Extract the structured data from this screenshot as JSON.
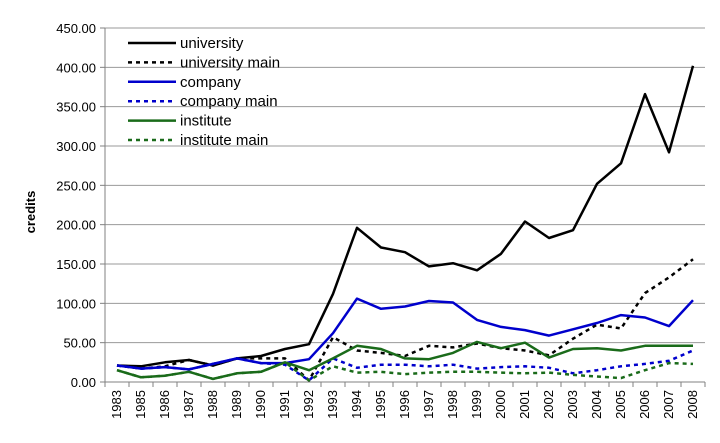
{
  "chart_data": {
    "type": "line",
    "title": "",
    "xlabel": "",
    "ylabel": "credits",
    "ylim": [
      0,
      450
    ],
    "y_ticks": [
      "0.00",
      "50.00",
      "100.00",
      "150.00",
      "200.00",
      "250.00",
      "300.00",
      "350.00",
      "400.00",
      "450.00"
    ],
    "grid": "horizontal",
    "legend_position": "top-left",
    "categories": [
      "1983",
      "1985",
      "1986",
      "1987",
      "1988",
      "1989",
      "1990",
      "1991",
      "1992",
      "1993",
      "1994",
      "1995",
      "1996",
      "1997",
      "1998",
      "1999",
      "2000",
      "2001",
      "2002",
      "2003",
      "2004",
      "2005",
      "2006",
      "2007",
      "2008"
    ],
    "series": [
      {
        "name": "university",
        "color": "#000000",
        "dash": "solid",
        "values": [
          21,
          20,
          25,
          28,
          21,
          30,
          33,
          42,
          48,
          112,
          196,
          171,
          165,
          147,
          151,
          142,
          163,
          204,
          183,
          193,
          252,
          278,
          366,
          292,
          402
        ]
      },
      {
        "name": "university main",
        "color": "#000000",
        "dash": "dashed",
        "values": [
          21,
          17,
          20,
          28,
          21,
          30,
          30,
          30,
          2,
          57,
          40,
          37,
          33,
          46,
          44,
          49,
          43,
          40,
          34,
          55,
          73,
          68,
          113,
          133,
          156
        ]
      },
      {
        "name": "company",
        "color": "#0000cc",
        "dash": "solid",
        "values": [
          21,
          17,
          19,
          16,
          23,
          30,
          24,
          24,
          29,
          62,
          106,
          93,
          96,
          103,
          101,
          79,
          70,
          66,
          59,
          67,
          75,
          85,
          82,
          71,
          104
        ]
      },
      {
        "name": "company main",
        "color": "#0000cc",
        "dash": "dashed",
        "values": [
          21,
          17,
          19,
          16,
          23,
          30,
          24,
          22,
          2,
          30,
          18,
          22,
          22,
          20,
          22,
          17,
          19,
          20,
          18,
          11,
          15,
          20,
          23,
          27,
          40
        ]
      },
      {
        "name": "institute",
        "color": "#1a6b1a",
        "dash": "solid",
        "values": [
          15,
          6,
          8,
          13,
          4,
          11,
          13,
          25,
          15,
          30,
          46,
          42,
          30,
          29,
          37,
          51,
          43,
          50,
          31,
          42,
          43,
          40,
          46,
          46,
          46
        ]
      },
      {
        "name": "institute main",
        "color": "#1a6b1a",
        "dash": "dashed",
        "values": [
          15,
          6,
          8,
          13,
          4,
          11,
          13,
          25,
          2,
          20,
          12,
          13,
          10,
          12,
          13,
          13,
          12,
          11,
          12,
          9,
          7,
          5,
          15,
          24,
          23
        ]
      }
    ]
  }
}
